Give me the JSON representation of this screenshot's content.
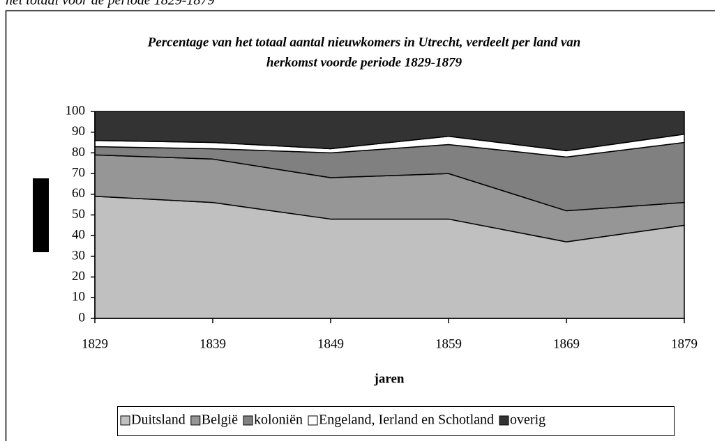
{
  "caption": "het totaal voor de periode 1829-1879",
  "chart_data": {
    "type": "stacked_area",
    "title": [
      "Percentage van het totaal aantal nieuwkomers in Utrecht, verdeelt per land van",
      "herkomst voorde periode 1829-1879"
    ],
    "x_label": "jaren",
    "x": [
      1829,
      1839,
      1849,
      1859,
      1869,
      1879
    ],
    "xlim": [
      1829,
      1879
    ],
    "xticks": [
      1829,
      1839,
      1849,
      1859,
      1869,
      1879
    ],
    "ylim": [
      0,
      100
    ],
    "yticks": [
      0,
      10,
      20,
      30,
      40,
      50,
      60,
      70,
      80,
      90,
      100
    ],
    "legend": "bottom",
    "series": [
      {
        "name": "Duitsland",
        "color": "#c0c0c0",
        "values": [
          59,
          56,
          48,
          48,
          37,
          45
        ]
      },
      {
        "name": "België",
        "color": "#969696",
        "values": [
          20,
          21,
          20,
          22,
          15,
          11
        ]
      },
      {
        "name": "koloniën",
        "color": "#808080",
        "values": [
          4,
          5,
          12,
          14,
          26,
          29
        ]
      },
      {
        "name": "Engeland, Ierland en Schotland",
        "color": "#ffffff",
        "values": [
          3,
          3,
          2,
          4,
          3,
          4
        ]
      },
      {
        "name": "overig",
        "color": "#333333",
        "values": [
          14,
          15,
          18,
          12,
          19,
          11
        ]
      }
    ]
  }
}
